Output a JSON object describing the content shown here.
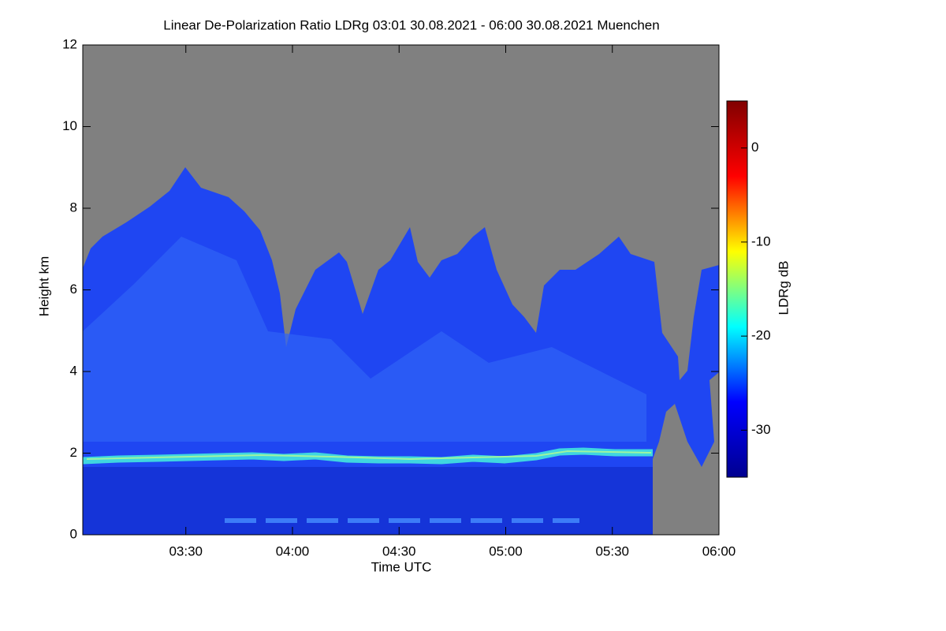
{
  "chart_data": {
    "type": "heatmap",
    "title": "Linear De-Polarization Ratio LDRg   03:01 30.08.2021 - 06:00 30.08.2021 Muenchen",
    "x_label": "Time UTC",
    "y_label": "Height km",
    "colorbar_label": "LDRg dB",
    "xlim": [
      181,
      360
    ],
    "xticks": [
      {
        "value": 210,
        "label": "03:30"
      },
      {
        "value": 240,
        "label": "04:00"
      },
      {
        "value": 270,
        "label": "04:30"
      },
      {
        "value": 300,
        "label": "05:00"
      },
      {
        "value": 330,
        "label": "05:30"
      },
      {
        "value": 360,
        "label": "06:00"
      }
    ],
    "ylim": [
      0,
      12
    ],
    "yticks": [
      0,
      2,
      4,
      6,
      8,
      10,
      12
    ],
    "clim": [
      -35,
      5
    ],
    "cticks": [
      0,
      -10,
      -20,
      -30
    ],
    "colormap": "jet"
  }
}
